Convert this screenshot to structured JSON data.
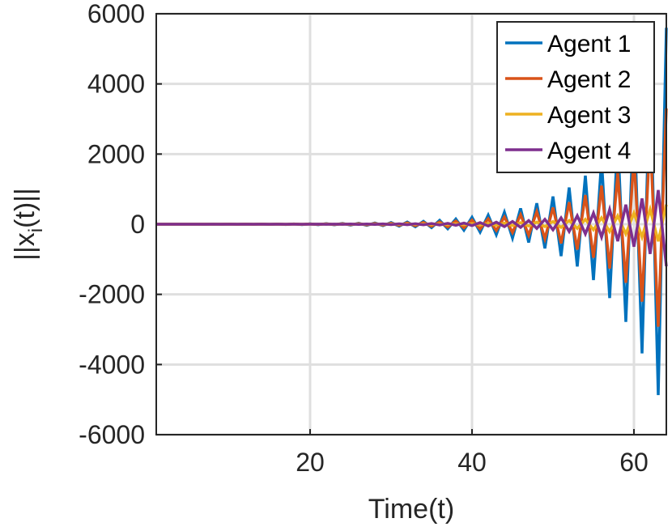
{
  "chart_data": {
    "type": "line",
    "xlabel": "Time(t)",
    "ylabel": {
      "prefix": "||x",
      "sub": "i",
      "suffix": "(t)||"
    },
    "x": [
      1,
      2,
      3,
      4,
      5,
      6,
      7,
      8,
      9,
      10,
      11,
      12,
      13,
      14,
      15,
      16,
      17,
      18,
      19,
      20,
      21,
      22,
      23,
      24,
      25,
      26,
      27,
      28,
      29,
      30,
      31,
      32,
      33,
      34,
      35,
      36,
      37,
      38,
      39,
      40,
      41,
      42,
      43,
      44,
      45,
      46,
      47,
      48,
      49,
      50,
      51,
      52,
      53,
      54,
      55,
      56,
      57,
      58,
      59,
      60,
      61,
      62,
      63,
      64
    ],
    "xlim": [
      1,
      64
    ],
    "xticks": [
      20,
      40,
      60
    ],
    "ylim": [
      -6000,
      6000
    ],
    "yticks": [
      -6000,
      -4000,
      -2000,
      0,
      2000,
      4000,
      6000
    ],
    "grid": true,
    "legend": "upper right",
    "series": [
      {
        "name": "Agent 1",
        "color": "#0072bd",
        "values": [
          -1,
          1,
          -1,
          1,
          -1,
          1,
          -2,
          2,
          -2,
          3,
          -3,
          4,
          -4,
          5,
          -6,
          7,
          -8,
          9,
          -10,
          12,
          -13,
          16,
          -18,
          21,
          -24,
          27,
          -32,
          36,
          -42,
          48,
          -55,
          64,
          -73,
          84,
          -97,
          112,
          -129,
          148,
          -170,
          196,
          -225,
          259,
          -297,
          342,
          -393,
          452,
          -520,
          598,
          -688,
          791,
          -910,
          1047,
          -1204,
          1384,
          -1592,
          1831,
          -2105,
          2421,
          -2784,
          3202,
          -3682,
          4235,
          -4870,
          5600
        ]
      },
      {
        "name": "Agent 2",
        "color": "#d95319",
        "values": [
          -1,
          1,
          -1,
          1,
          -1,
          1,
          -1,
          1,
          -1,
          2,
          -2,
          2,
          -2,
          3,
          -4,
          4,
          -5,
          5,
          -6,
          7,
          -8,
          10,
          -11,
          13,
          -14,
          16,
          -19,
          22,
          -25,
          29,
          -33,
          38,
          -44,
          50,
          -58,
          67,
          -77,
          89,
          -102,
          118,
          -135,
          155,
          -178,
          205,
          -236,
          271,
          -312,
          359,
          -413,
          475,
          -546,
          628,
          -722,
          830,
          -955,
          1099,
          -1263,
          1453,
          -1670,
          1921,
          -2209,
          2541,
          -2922,
          3300
        ]
      },
      {
        "name": "Agent 3",
        "color": "#edb120",
        "values": [
          0,
          0,
          0,
          0,
          0,
          0,
          0,
          0,
          0,
          0,
          0,
          0,
          0,
          0,
          0,
          0,
          0,
          0,
          0,
          0,
          -1,
          2,
          -2,
          2,
          -2,
          3,
          -3,
          4,
          -4,
          5,
          -6,
          6,
          -7,
          8,
          -10,
          11,
          -13,
          15,
          -17,
          20,
          -23,
          26,
          -30,
          34,
          -39,
          45,
          -52,
          60,
          -69,
          79,
          -91,
          105,
          -120,
          138,
          -159,
          183,
          -211,
          242,
          -278,
          320,
          -368,
          424,
          -487,
          560
        ]
      },
      {
        "name": "Agent 4",
        "color": "#7e2f8e",
        "values": [
          0,
          0,
          0,
          0,
          0,
          0,
          0,
          0,
          0,
          0,
          0,
          0,
          0,
          0,
          0,
          0,
          0,
          0,
          0,
          0,
          3,
          -3,
          4,
          -4,
          5,
          -5,
          6,
          -7,
          8,
          -10,
          11,
          -13,
          15,
          -17,
          19,
          -22,
          26,
          -30,
          34,
          -39,
          45,
          -52,
          59,
          -68,
          79,
          -90,
          104,
          -120,
          138,
          -158,
          182,
          -209,
          241,
          -277,
          318,
          -366,
          421,
          -484,
          557,
          -640,
          736,
          -847,
          974,
          -1200
        ]
      }
    ]
  }
}
